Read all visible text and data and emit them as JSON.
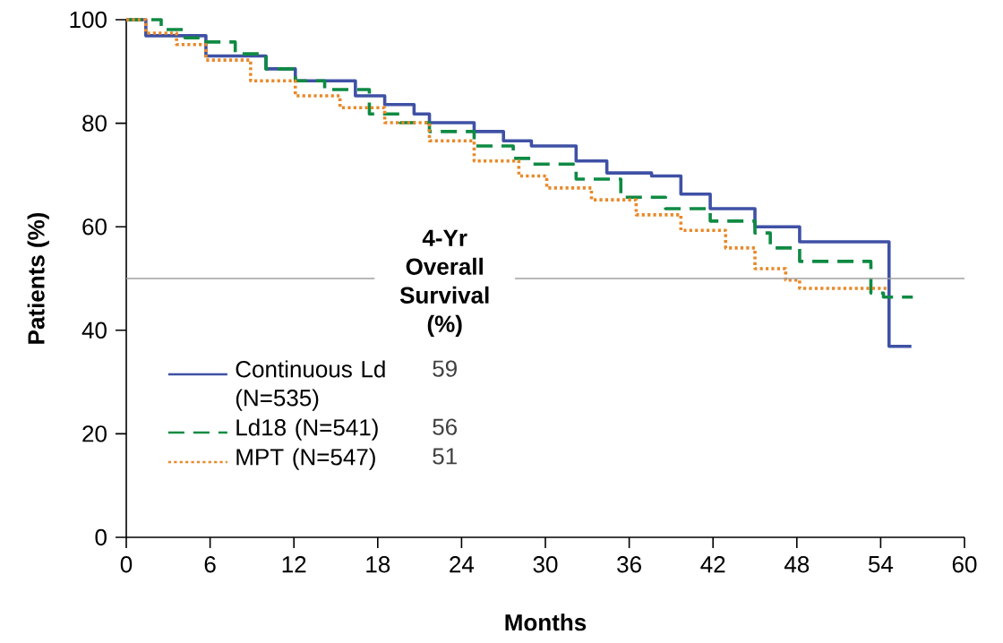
{
  "chart_data": {
    "type": "step",
    "xlabel": "Months",
    "ylabel": "Patients (%)",
    "legend_title": "4-Yr Overall Survival (%)",
    "legend": "bottom left",
    "xlim": [
      0,
      60
    ],
    "ylim": [
      0,
      100
    ],
    "xticks": [
      0,
      6,
      12,
      18,
      24,
      30,
      36,
      42,
      48,
      54,
      60
    ],
    "yticks": [
      0,
      20,
      40,
      60,
      80,
      100
    ],
    "series": [
      {
        "name": "Continuous Ld (N=535)",
        "color": "#3f51a5",
        "line_style": "solid",
        "x": [
          0,
          1.4,
          5.7,
          10,
          12.1,
          16.4,
          18.5,
          20.6,
          21.7,
          24.9,
          27,
          29,
          32.2,
          34.4,
          37.6,
          39.7,
          41.8,
          45,
          48.2,
          54.6,
          56.2
        ],
        "values": [
          100,
          96.9,
          93,
          90.5,
          88.2,
          85.3,
          83.6,
          81.8,
          80.1,
          78.4,
          76.6,
          75.6,
          72.7,
          70.4,
          69.8,
          66.3,
          63.5,
          60,
          57.1,
          36.9,
          36.9
        ]
      },
      {
        "name": "Ld18 (N=541)",
        "color": "#0e8a43",
        "line_style": "dashed",
        "x": [
          0,
          2.5,
          4.2,
          5.7,
          7.8,
          10,
          12.1,
          14.2,
          17.4,
          19.6,
          21.7,
          24.9,
          27.7,
          29,
          32.2,
          35.4,
          38.6,
          41.8,
          45,
          46.1,
          48.2,
          53.3,
          54.2,
          56.3
        ],
        "values": [
          100,
          98.1,
          96.5,
          95.7,
          93.4,
          90.5,
          88.2,
          86.5,
          81.8,
          80.1,
          78.4,
          75.6,
          73.2,
          72.1,
          69.2,
          65.7,
          63.5,
          61.1,
          58.8,
          55.9,
          53.3,
          47.2,
          46.4,
          46.4
        ]
      },
      {
        "name": "MPT (N=547)",
        "color": "#e8892a",
        "line_style": "dotted",
        "x": [
          0,
          1.4,
          3.6,
          5.7,
          8.9,
          12.1,
          15.3,
          18.5,
          21.7,
          24.9,
          28.1,
          30.1,
          33.3,
          36.5,
          39.7,
          42.9,
          45,
          47.2,
          48.2,
          54.6
        ],
        "values": [
          100,
          97.4,
          95.2,
          92.2,
          88.2,
          85.3,
          83,
          80.1,
          76.6,
          72.7,
          69.8,
          67.5,
          65.2,
          62.3,
          59.3,
          55.9,
          51.9,
          49.7,
          48.1,
          48.1
        ]
      }
    ],
    "ref_lines": [
      {
        "axis": "y",
        "value": 50,
        "color": "#a0a0a0"
      }
    ],
    "annotations": [
      "59",
      "56",
      "51"
    ]
  }
}
